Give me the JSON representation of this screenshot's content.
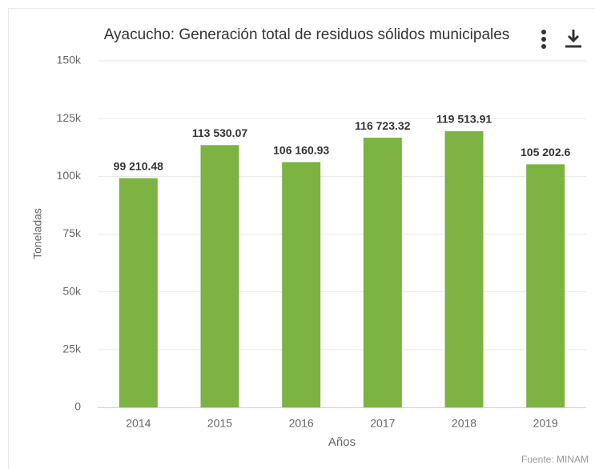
{
  "chart_data": {
    "type": "bar",
    "title": "Ayacucho: Generación total de residuos sólidos municipales",
    "x_label": "Años",
    "y_label": "Toneladas",
    "source": "Fuente: MINAM",
    "categories": [
      "2014",
      "2015",
      "2016",
      "2017",
      "2018",
      "2019"
    ],
    "values": [
      99210.48,
      113530.07,
      106160.93,
      116723.32,
      119513.91,
      105202.6
    ],
    "value_labels": [
      "99 210.48",
      "113 530.07",
      "106 160.93",
      "116 723.32",
      "119 513.91",
      "105 202.6"
    ],
    "color": "#7cb342",
    "ylim": [
      0,
      150000
    ],
    "yticks": [
      0,
      {
        "value": 25000,
        "label": "25k"
      },
      {
        "value": 50000,
        "label": "50k"
      },
      {
        "value": 75000,
        "label": "75k"
      },
      {
        "value": 100000,
        "label": "100k"
      },
      {
        "value": 125000,
        "label": "125k"
      },
      {
        "value": 150000,
        "label": "150k"
      }
    ],
    "grid": true
  }
}
